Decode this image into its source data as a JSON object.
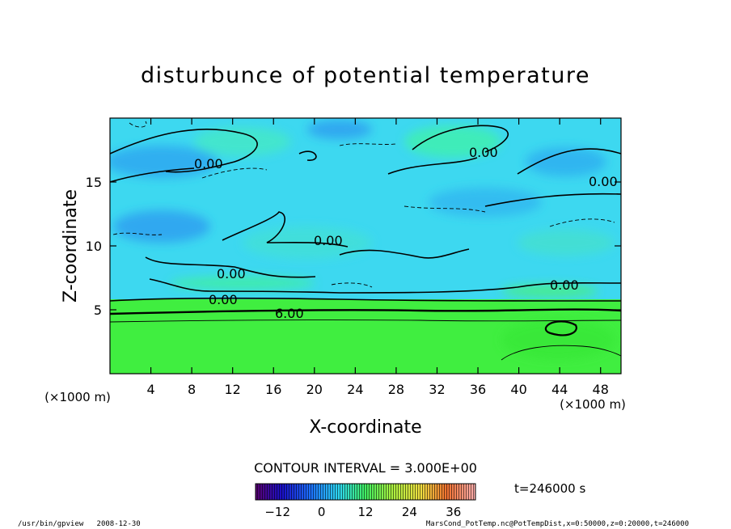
{
  "chart_data": {
    "type": "heatmap",
    "title": "disturbunce of potential temperature",
    "xlabel": "X-coordinate",
    "ylabel": "Z-coordinate",
    "x_unit": "(×1000 m)",
    "y_unit": "(×1000 m)",
    "xlim": [
      0,
      50
    ],
    "ylim": [
      0,
      20
    ],
    "xticks": [
      4,
      8,
      12,
      16,
      20,
      24,
      28,
      32,
      36,
      40,
      44,
      48
    ],
    "yticks": [
      5,
      10,
      15
    ],
    "contour_interval_text": "CONTOUR INTERVAL = 3.000E+00",
    "time_text": "t=246000 s",
    "colorbar": {
      "min": -18,
      "max": 42,
      "ticks": [
        -12,
        0,
        12,
        24,
        36
      ]
    },
    "contour_labels": [
      {
        "text": "0.00",
        "x": 8.6,
        "z": 16.1
      },
      {
        "text": "0.00",
        "x": 36.8,
        "z": 17.5
      },
      {
        "text": "0.00",
        "x": 48.0,
        "z": 14.8
      },
      {
        "text": "0.00",
        "x": 21.2,
        "z": 10.1
      },
      {
        "text": "0.00",
        "x": 11.9,
        "z": 7.9
      },
      {
        "text": "0.00",
        "x": 43.8,
        "z": 6.9
      },
      {
        "text": "0.00",
        "x": 11.0,
        "z": 5.8
      },
      {
        "text": "6.00",
        "x": 17.8,
        "z": 4.6
      }
    ],
    "colors": {
      "upper_region": "#3dd8f0",
      "lower_region": "#40ee40",
      "frame": "#000000"
    }
  },
  "footer": {
    "left": "/usr/bin/gpview   2008-12-30",
    "right": "MarsCond_PotTemp.nc@PotTempDist,x=0:50000,z=0:20000,t=246000"
  }
}
